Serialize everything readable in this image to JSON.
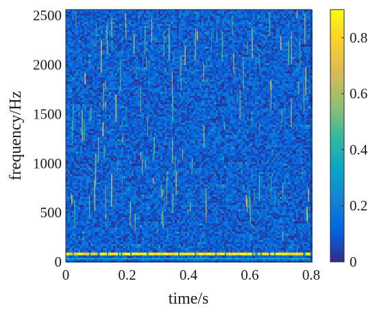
{
  "chart_data": {
    "type": "heatmap",
    "title": "",
    "xlabel": "time/s",
    "ylabel": "frequency/Hz",
    "xlim": [
      0,
      0.8
    ],
    "ylim": [
      0,
      2560
    ],
    "x_ticks": [
      0,
      0.2,
      0.4,
      0.6,
      0.8
    ],
    "x_tick_labels": [
      "0",
      "0.2",
      "0.4",
      "0.6",
      "0.8"
    ],
    "y_ticks": [
      0,
      500,
      1000,
      1500,
      2000,
      2500
    ],
    "y_tick_labels": [
      "0",
      "500",
      "1000",
      "1500",
      "2000",
      "2500"
    ],
    "colorbar": {
      "range": [
        0,
        0.9
      ],
      "ticks": [
        0,
        0.2,
        0.4,
        0.6,
        0.8
      ],
      "tick_labels": [
        "0",
        "0.2",
        "0.4",
        "0.6",
        "0.8"
      ],
      "colormap": "parula"
    },
    "grid": false,
    "features": {
      "background_level": 0.12,
      "low_frequency_band_hz": 80,
      "low_frequency_band_level": 0.85,
      "transient_streaks": "sparse vertical streaks of ~0.5-0.8 across all frequencies"
    }
  }
}
